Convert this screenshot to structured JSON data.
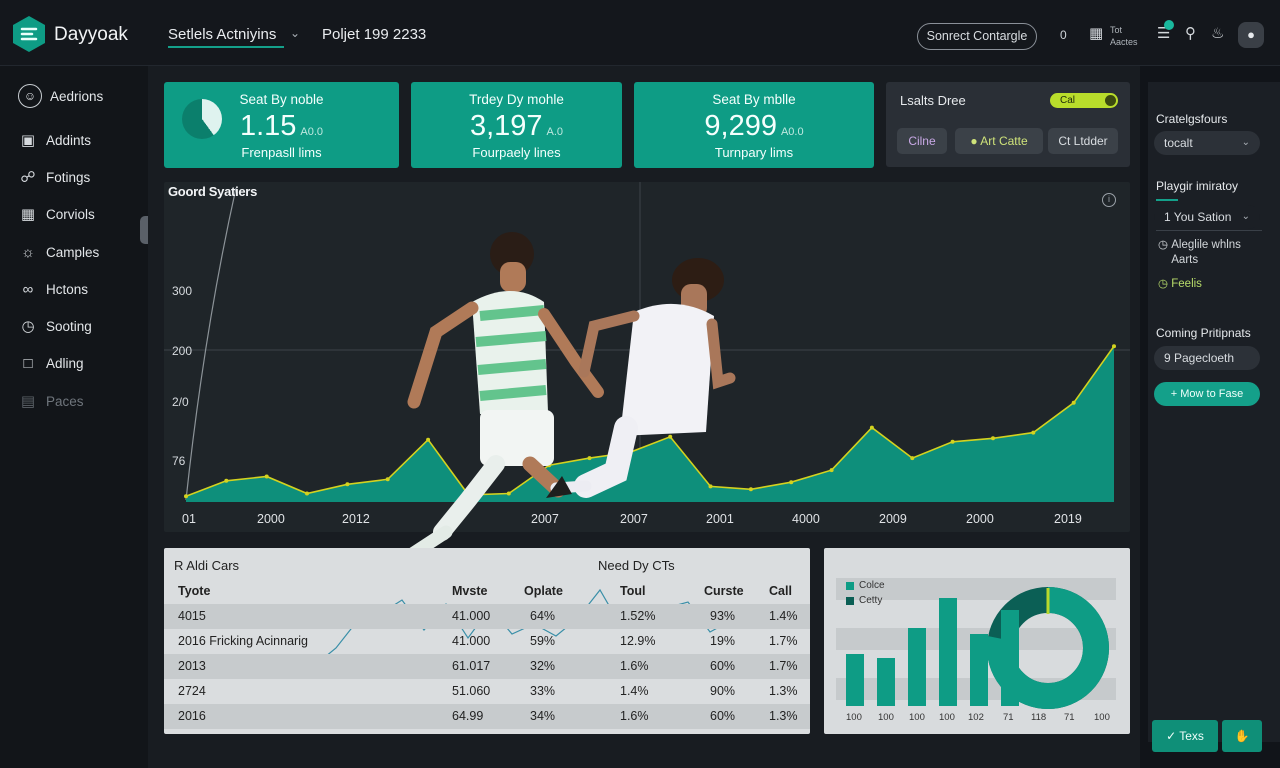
{
  "header": {
    "app_name": "Dayyoak",
    "nav_select": "Setlels Actniyins",
    "project": "Poljet 199 2233",
    "pill_button": "Sonrect Contargle",
    "count": "0",
    "small_label": [
      "Tot",
      "Aactes"
    ]
  },
  "sidebar": {
    "items": [
      {
        "label": "Aedrions",
        "icon": "user-circle-icon"
      },
      {
        "label": "Addints",
        "icon": "inbox-icon"
      },
      {
        "label": "Fotings",
        "icon": "lock-icon"
      },
      {
        "label": "Corviols",
        "icon": "grid-icon"
      },
      {
        "label": "Camples",
        "icon": "globe-icon"
      },
      {
        "label": "Hctons",
        "icon": "link-icon"
      },
      {
        "label": "Sooting",
        "icon": "clock-icon"
      },
      {
        "label": "Adling",
        "icon": "chat-icon"
      },
      {
        "label": "Paces",
        "icon": "layers-icon"
      }
    ]
  },
  "kpis": [
    {
      "title": "Seat By noble",
      "value": "1.15",
      "sub": "A0.0",
      "subtitle": "Frenpasll lims"
    },
    {
      "title": "Trdey Dy mohle",
      "value": "3,197",
      "sub": "A.0",
      "subtitle": "Fourpaely lines"
    },
    {
      "title": "Seat By mblle",
      "value": "9,299",
      "sub": "A0.0",
      "subtitle": "Turnpary lims"
    }
  ],
  "controls": {
    "title": "Lsalts Dree",
    "toggle_label": "Cal",
    "chips": [
      "Cilne",
      "Art Catte",
      "Ct Ltdder"
    ]
  },
  "chart_data": {
    "type": "area",
    "title": "Goord Syatiers",
    "y_ticks": [
      "300",
      "200",
      "2/0",
      "76"
    ],
    "x_ticks": [
      "01",
      "2000",
      "2012",
      "2007",
      "2007",
      "2001",
      "4000",
      "2009",
      "2000",
      "2019"
    ],
    "ylim": [
      0,
      300
    ],
    "values": [
      8,
      30,
      36,
      12,
      25,
      32,
      88,
      10,
      12,
      52,
      62,
      70,
      92,
      22,
      18,
      28,
      45,
      105,
      62,
      85,
      90,
      98,
      140,
      220
    ],
    "color": "#0e8f7b",
    "line_color": "#d4d21f"
  },
  "table": {
    "title": "R Aldi Cars",
    "title2": "Need Dy CTs",
    "columns": [
      "Tyote",
      "Mvste",
      "Oplate",
      "Toul",
      "Curste",
      "Call"
    ],
    "rows": [
      [
        "4015",
        "41.000",
        "64%",
        "1.52%",
        "93%",
        "1.4%"
      ],
      [
        "2016 Fricking Acinnarig",
        "41.000",
        "59%",
        "12.9%",
        "19%",
        "1.7%"
      ],
      [
        "2013",
        "61.017",
        "32%",
        "1.6%",
        "60%",
        "1.7%"
      ],
      [
        "2724",
        "51.060",
        "33%",
        "1.4%",
        "90%",
        "1.3%"
      ],
      [
        "2016",
        "64.99",
        "34%",
        "1.6%",
        "60%",
        "1.3%"
      ]
    ]
  },
  "bar_chart": {
    "legend": [
      "Colce",
      "Cetty"
    ],
    "values": [
      52,
      48,
      78,
      108,
      72,
      96
    ],
    "donut_fraction": 0.78,
    "x_ticks": [
      "100",
      "100",
      "100",
      "100",
      "102",
      "71",
      "118",
      "71",
      "100"
    ],
    "colors": [
      "#0e9c85",
      "#0b5f55"
    ]
  },
  "right_panel": {
    "section1": "Cratelgsfours",
    "select1": "tocalt",
    "section2": "Playgir imiratoy",
    "select2": "1  You Sation",
    "items": [
      "Aleglile whlns Aarts",
      "Feelis"
    ],
    "section3": "Coming Pritipnats",
    "select3": "9  Pagecloeth",
    "action_button": "+ Mow to Fase",
    "footer_button": "Texs"
  }
}
